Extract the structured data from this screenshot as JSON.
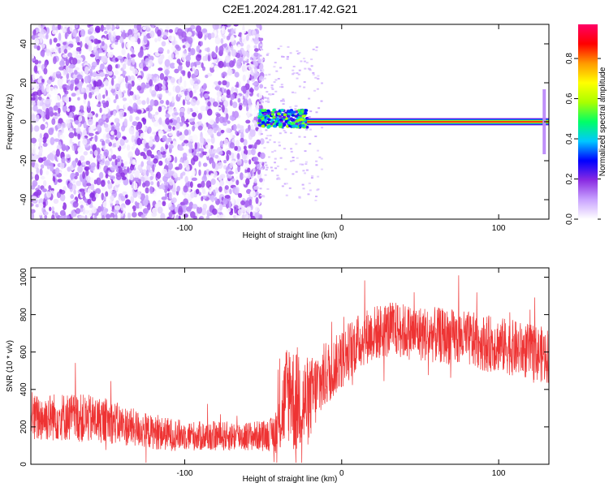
{
  "title": "C2E1.2024.281.17.42.G21",
  "chart_data": [
    {
      "type": "heatmap",
      "xlabel": "Height of straight line (km)",
      "ylabel": "Frequency (Hz)",
      "xlim": [
        -198,
        132
      ],
      "ylim": [
        -50,
        50
      ],
      "x_ticks": [
        -100,
        0,
        100
      ],
      "y_ticks": [
        -40,
        -20,
        0,
        20,
        40
      ],
      "colorbar": {
        "label": "Normalized spectral amplitude",
        "range": [
          0,
          0.97
        ],
        "ticks": [
          0.0,
          0.2,
          0.4,
          0.6,
          0.8
        ],
        "colors": [
          "#ffffff",
          "#c9a3ff",
          "#8a2be2",
          "#0000ff",
          "#00c8ff",
          "#00ff66",
          "#aaff00",
          "#ffff00",
          "#ff9900",
          "#ff0000",
          "#ff0066"
        ]
      },
      "regions": [
        {
          "name": "noise",
          "x_range": [
            -198,
            -53
          ],
          "freq_range": [
            -50,
            50
          ],
          "amplitude_range": [
            0.0,
            0.2
          ]
        },
        {
          "name": "transition",
          "x_range": [
            -53,
            -22
          ],
          "freq_range": [
            -3,
            6
          ],
          "amplitude_range": [
            0.2,
            0.6
          ]
        },
        {
          "name": "signal",
          "x_range": [
            -22,
            132
          ],
          "freq": 0,
          "amplitude_range": [
            0.8,
            0.95
          ]
        }
      ]
    },
    {
      "type": "line",
      "xlabel": "Height of straight line (km)",
      "ylabel": "SNR (10 * v/v)",
      "xlim": [
        -198,
        132
      ],
      "ylim": [
        0,
        1050
      ],
      "x_ticks": [
        -100,
        0,
        100
      ],
      "y_ticks": [
        0,
        200,
        400,
        600,
        800,
        1000
      ],
      "color": "#ee3333",
      "series": [
        {
          "x": [
            -198,
            -190,
            -180,
            -170,
            -160,
            -150,
            -140,
            -130,
            -120,
            -110,
            -100,
            -90,
            -80,
            -70,
            -60,
            -50,
            -45,
            -40,
            -38,
            -35,
            -32,
            -30,
            -27,
            -25,
            -22,
            -20,
            -15,
            -10,
            -5,
            0,
            5,
            10,
            15,
            20,
            25,
            30,
            35,
            40,
            50,
            60,
            70,
            80,
            90,
            100,
            110,
            120,
            132
          ],
          "y": [
            240,
            250,
            255,
            250,
            240,
            235,
            210,
            190,
            170,
            160,
            155,
            150,
            150,
            150,
            150,
            155,
            160,
            200,
            280,
            380,
            420,
            300,
            380,
            320,
            330,
            350,
            420,
            480,
            520,
            560,
            610,
            650,
            680,
            700,
            710,
            720,
            720,
            710,
            700,
            690,
            680,
            670,
            650,
            640,
            620,
            600,
            580
          ],
          "spread": [
            130,
            130,
            130,
            130,
            130,
            120,
            110,
            100,
            90,
            90,
            80,
            80,
            80,
            80,
            80,
            80,
            90,
            150,
            220,
            280,
            300,
            280,
            300,
            280,
            250,
            220,
            200,
            180,
            160,
            160,
            160,
            150,
            150,
            150,
            150,
            150,
            150,
            150,
            150,
            150,
            150,
            150,
            150,
            150,
            150,
            150,
            150
          ]
        }
      ]
    }
  ]
}
